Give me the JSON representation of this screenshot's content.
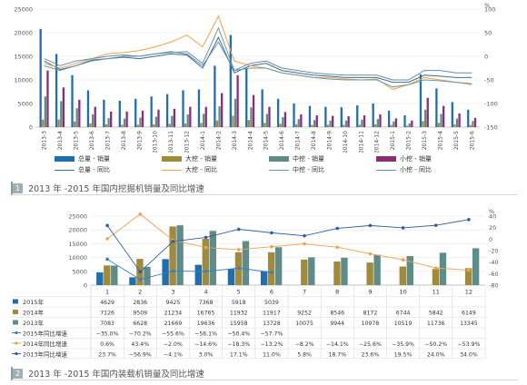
{
  "figures": [
    {
      "num": "1",
      "caption": "2013 年 -2015 年国内挖掘机销量及同比增速"
    },
    {
      "num": "2",
      "caption": "2013 年 -2015 年国内装载机销量及同比增速"
    }
  ],
  "colors": {
    "total": "#1f6fae",
    "large": "#a08a3c",
    "medium": "#5e8c88",
    "small": "#8c2d74",
    "total_line": "#3d6c8c",
    "large_line": "#f0a050",
    "medium_line": "#6a9a9a",
    "small_line": "#6a8ab0",
    "y2015": "#1f6fae",
    "y2014": "#a08a3c",
    "y2013": "#5e8c88",
    "g2015": "#3a7dc0",
    "g2014": "#f0a050",
    "g2013": "#2f5f9f"
  },
  "chart_data": [
    {
      "type": "bar",
      "categories": [
        "2013-3",
        "2013-4",
        "2013-5",
        "2013-6",
        "2013-7",
        "2013-8",
        "2013-9",
        "2013-10",
        "2013-11",
        "2013-12",
        "2014-1",
        "2014-2",
        "2014-3",
        "2014-4",
        "2014-5",
        "2014-6",
        "2014-7",
        "2014-8",
        "2014-9",
        "2014-10",
        "2014-11",
        "2014-12",
        "2015-1",
        "2015-2",
        "2015-3",
        "2015-4",
        "2015-5",
        "2015-6"
      ],
      "y_ticks": [
        "25000",
        "20000",
        "15000",
        "10000",
        "5000",
        "0"
      ],
      "y2_ticks": [
        "100",
        "50",
        "0",
        "-50",
        "-100",
        "-150"
      ],
      "y2_unit": "%",
      "ylim": [
        0,
        25000
      ],
      "y2lim": [
        -150,
        100
      ],
      "series": [
        {
          "name": "总量 - 销量",
          "kind": "bar",
          "axis": "y",
          "values": [
            20800,
            15500,
            11000,
            7800,
            5800,
            5600,
            6000,
            6500,
            7000,
            7800,
            8000,
            13000,
            19500,
            12500,
            8000,
            6000,
            5000,
            4500,
            4300,
            4200,
            4600,
            5000,
            3500,
            2500,
            11200,
            8200,
            5300,
            3700
          ]
        },
        {
          "name": "大挖 - 销量",
          "kind": "bar",
          "axis": "y",
          "values": [
            1600,
            1600,
            1200,
            800,
            600,
            500,
            500,
            600,
            700,
            800,
            900,
            1400,
            2400,
            1500,
            900,
            700,
            600,
            500,
            500,
            500,
            500,
            600,
            450,
            300,
            1300,
            900,
            600,
            450
          ]
        },
        {
          "name": "中挖 - 销量",
          "kind": "bar",
          "axis": "y",
          "values": [
            6500,
            5500,
            4000,
            2700,
            1900,
            1800,
            2000,
            2200,
            2400,
            2700,
            2800,
            4400,
            6000,
            4200,
            2800,
            2100,
            1700,
            1500,
            1400,
            1400,
            1600,
            1700,
            1200,
            800,
            3700,
            2800,
            1800,
            1300
          ]
        },
        {
          "name": "小挖 - 销量",
          "kind": "bar",
          "axis": "y",
          "values": [
            12000,
            8400,
            5800,
            4300,
            3300,
            3300,
            3500,
            3700,
            3900,
            4300,
            4300,
            7200,
            11000,
            6800,
            4300,
            3200,
            2700,
            2500,
            2400,
            2300,
            2500,
            2700,
            1850,
            1400,
            6200,
            4500,
            2900,
            1950
          ]
        },
        {
          "name": "总量 - 同比",
          "kind": "line",
          "axis": "y2",
          "values": [
            -10,
            -28,
            -20,
            -8,
            -5,
            -2,
            -5,
            0,
            5,
            3,
            -25,
            40,
            -35,
            -20,
            -15,
            -30,
            -35,
            -40,
            -42,
            -45,
            -45,
            -45,
            -55,
            -55,
            -40,
            -42,
            -45,
            -45
          ]
        },
        {
          "name": "大挖 - 同比",
          "kind": "line",
          "axis": "y2",
          "values": [
            -15,
            -25,
            -15,
            -5,
            5,
            8,
            12,
            20,
            30,
            45,
            20,
            85,
            -10,
            -20,
            -25,
            -35,
            -40,
            -45,
            -45,
            -48,
            -50,
            -48,
            -70,
            -60,
            -45,
            -50,
            -55,
            -60
          ]
        },
        {
          "name": "中挖 - 同比",
          "kind": "line",
          "axis": "y2",
          "values": [
            -20,
            -30,
            -20,
            -10,
            -5,
            0,
            0,
            5,
            8,
            10,
            -15,
            60,
            -30,
            -25,
            -25,
            -35,
            -40,
            -45,
            -48,
            -50,
            -50,
            -50,
            -65,
            -60,
            -50,
            -52,
            -55,
            -58
          ]
        },
        {
          "name": "小挖 - 同比",
          "kind": "line",
          "axis": "y2",
          "values": [
            -5,
            -20,
            -10,
            -5,
            0,
            3,
            0,
            5,
            10,
            5,
            -20,
            30,
            -30,
            -15,
            -10,
            -25,
            -30,
            -35,
            -38,
            -40,
            -40,
            -40,
            -50,
            -50,
            -30,
            -30,
            -35,
            -35
          ]
        }
      ]
    },
    {
      "type": "bar",
      "categories": [
        "1",
        "2",
        "3",
        "4",
        "5",
        "6",
        "7",
        "8",
        "9",
        "10",
        "11",
        "12"
      ],
      "y_ticks": [
        "25000",
        "20000",
        "15000",
        "10000",
        "5000",
        "0"
      ],
      "y2_ticks": [
        "40",
        "20",
        "0",
        "-20",
        "-40",
        "-60",
        "-80"
      ],
      "y2_unit": "%",
      "ylim": [
        0,
        25000
      ],
      "y2lim": [
        -80,
        40
      ],
      "series": [
        {
          "name": "2015年",
          "kind": "bar",
          "axis": "y",
          "values": [
            4629,
            2836,
            9425,
            7368,
            5918,
            5039,
            null,
            null,
            null,
            null,
            null,
            null
          ],
          "labels": [
            "4629",
            "2836",
            "9425",
            "7368",
            "5918",
            "5039",
            "",
            "",
            "",
            "",
            "",
            ""
          ]
        },
        {
          "name": "2014年",
          "kind": "bar",
          "axis": "y",
          "values": [
            7126,
            9509,
            21234,
            16765,
            11932,
            11917,
            9252,
            8546,
            8172,
            6744,
            5842,
            6149
          ],
          "labels": [
            "7126",
            "9509",
            "21234",
            "16765",
            "11932",
            "11917",
            "9252",
            "8546",
            "8172",
            "6744",
            "5842",
            "6149"
          ]
        },
        {
          "name": "2013年",
          "kind": "bar",
          "axis": "y",
          "values": [
            7083,
            6628,
            21669,
            19636,
            15958,
            13728,
            10075,
            9944,
            10978,
            10519,
            11736,
            13345
          ],
          "labels": [
            "7083",
            "6628",
            "21669",
            "19636",
            "15958",
            "13728",
            "10075",
            "9944",
            "10978",
            "10519",
            "11736",
            "13345"
          ]
        },
        {
          "name": "2015年同比增速",
          "kind": "line",
          "axis": "y2",
          "values": [
            -35.0,
            -70.2,
            -55.6,
            -56.1,
            -50.4,
            -57.7,
            null,
            null,
            null,
            null,
            null,
            null
          ],
          "labels": [
            "−35.0%",
            "−70.2%",
            "−55.6%",
            "−56.1%",
            "−50.4%",
            "−57.7%",
            "",
            "",
            "",
            "",
            "",
            ""
          ]
        },
        {
          "name": "2014年同比增速",
          "kind": "line",
          "axis": "y2",
          "values": [
            0.6,
            43.4,
            -2.0,
            -14.6,
            -18.3,
            -13.2,
            -8.2,
            -14.1,
            -25.6,
            -35.9,
            -50.2,
            -53.9
          ],
          "labels": [
            "0.6%",
            "43.4%",
            "−2.0%",
            "−14.6%",
            "−18.3%",
            "−13.2%",
            "−8.2%",
            "−14.1%",
            "−25.6%",
            "−35.9%",
            "−50.2%",
            "−53.9%"
          ]
        },
        {
          "name": "2013年同比增速",
          "kind": "line",
          "axis": "y2",
          "values": [
            23.7,
            -56.9,
            -4.1,
            3.0,
            17.1,
            11.0,
            5.8,
            18.7,
            23.6,
            19.5,
            24.0,
            34.0
          ],
          "labels": [
            "23.7%",
            "−56.9%",
            "−4.1%",
            "3.0%",
            "17.1%",
            "11.0%",
            "5.8%",
            "18.7%",
            "23.6%",
            "19.5%",
            "24.0%",
            "34.0%"
          ]
        }
      ]
    }
  ]
}
